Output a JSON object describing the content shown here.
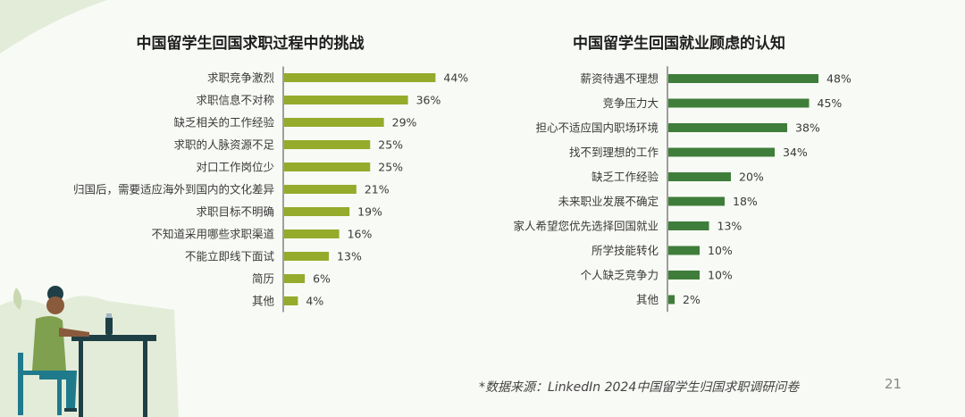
{
  "chart_data": [
    {
      "type": "bar",
      "orientation": "horizontal",
      "title": "中国留学生回国求职过程中的挑战",
      "categories": [
        "求职竞争激烈",
        "求职信息不对称",
        "缺乏相关的工作经验",
        "求职的人脉资源不足",
        "对口工作岗位少",
        "归国后，需要适应海外到国内的文化差异",
        "求职目标不明确",
        "不知道采用哪些求职渠道",
        "不能立即线下面试",
        "简历",
        "其他"
      ],
      "values": [
        44,
        36,
        29,
        25,
        25,
        21,
        19,
        16,
        13,
        6,
        4
      ],
      "value_labels": [
        "44%",
        "36%",
        "29%",
        "25%",
        "25%",
        "21%",
        "19%",
        "16%",
        "13%",
        "6%",
        "4%"
      ],
      "unit": "%",
      "color": "#94ab2c",
      "grid": false,
      "legend": "none"
    },
    {
      "type": "bar",
      "orientation": "horizontal",
      "title": "中国留学生回国就业顾虑的认知",
      "categories": [
        "薪资待遇不理想",
        "竞争压力大",
        "担心不适应国内职场环境",
        "找不到理想的工作",
        "缺乏工作经验",
        "未来职业发展不确定",
        "家人希望您优先选择回国就业",
        "所学技能转化",
        "个人缺乏竞争力",
        "其他"
      ],
      "values": [
        48,
        45,
        38,
        34,
        20,
        18,
        13,
        10,
        10,
        2
      ],
      "value_labels": [
        "48%",
        "45%",
        "38%",
        "34%",
        "20%",
        "18%",
        "13%",
        "10%",
        "10%",
        "2%"
      ],
      "unit": "%",
      "color": "#3f7d3a",
      "grid": false,
      "legend": "none"
    }
  ],
  "footer": {
    "source": "*数据来源：LinkedIn 2024中国留学生归国求职调研问卷",
    "page_number": "21"
  },
  "colors": {
    "background": "#f8faf5",
    "accent_light": "#e3ecd9",
    "bar_left": "#94ab2c",
    "bar_right": "#3f7d3a"
  }
}
